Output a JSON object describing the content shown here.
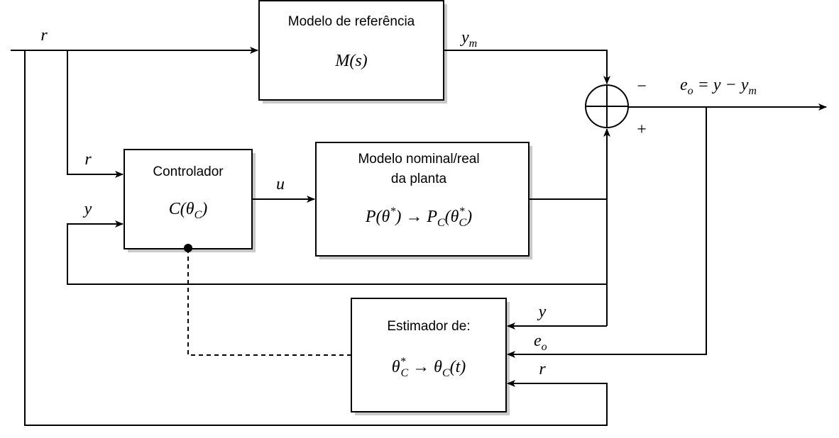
{
  "blocks": {
    "reference_model": {
      "title": "Modelo de referência",
      "tf": "M(s)"
    },
    "controller": {
      "title": "Controlador",
      "tf_main": "C(θ",
      "tf_sub": "C",
      "tf_close": ")"
    },
    "plant": {
      "title_line1": "Modelo nominal/real",
      "title_line2": "da planta",
      "tf_part1": "P(θ",
      "tf_star1": "*",
      "tf_part2": ") → P",
      "tf_sub1": "C",
      "tf_part3": "(θ",
      "tf_star2": "*",
      "tf_sub2": "C",
      "tf_close": ")"
    },
    "estimator": {
      "title": "Estimador de:",
      "expr_theta": "θ",
      "expr_star": "*",
      "expr_sub1": "C",
      "expr_arrow": " → θ",
      "expr_sub2": "C",
      "expr_tail": "(t)"
    }
  },
  "signals": {
    "r_input": "r",
    "ym_main": "y",
    "ym_sub": "m",
    "minus_sign": "−",
    "plus_sign": "+",
    "error_lhs": "e",
    "error_lhs_sub": "o",
    "error_rhs": " = y − y",
    "error_rhs_sub": "m",
    "r_controller": "r",
    "y_controller": "y",
    "u_signal": "u",
    "y_estimator": "y",
    "eo_estimator": "e",
    "eo_estimator_sub": "o",
    "r_estimator": "r"
  }
}
